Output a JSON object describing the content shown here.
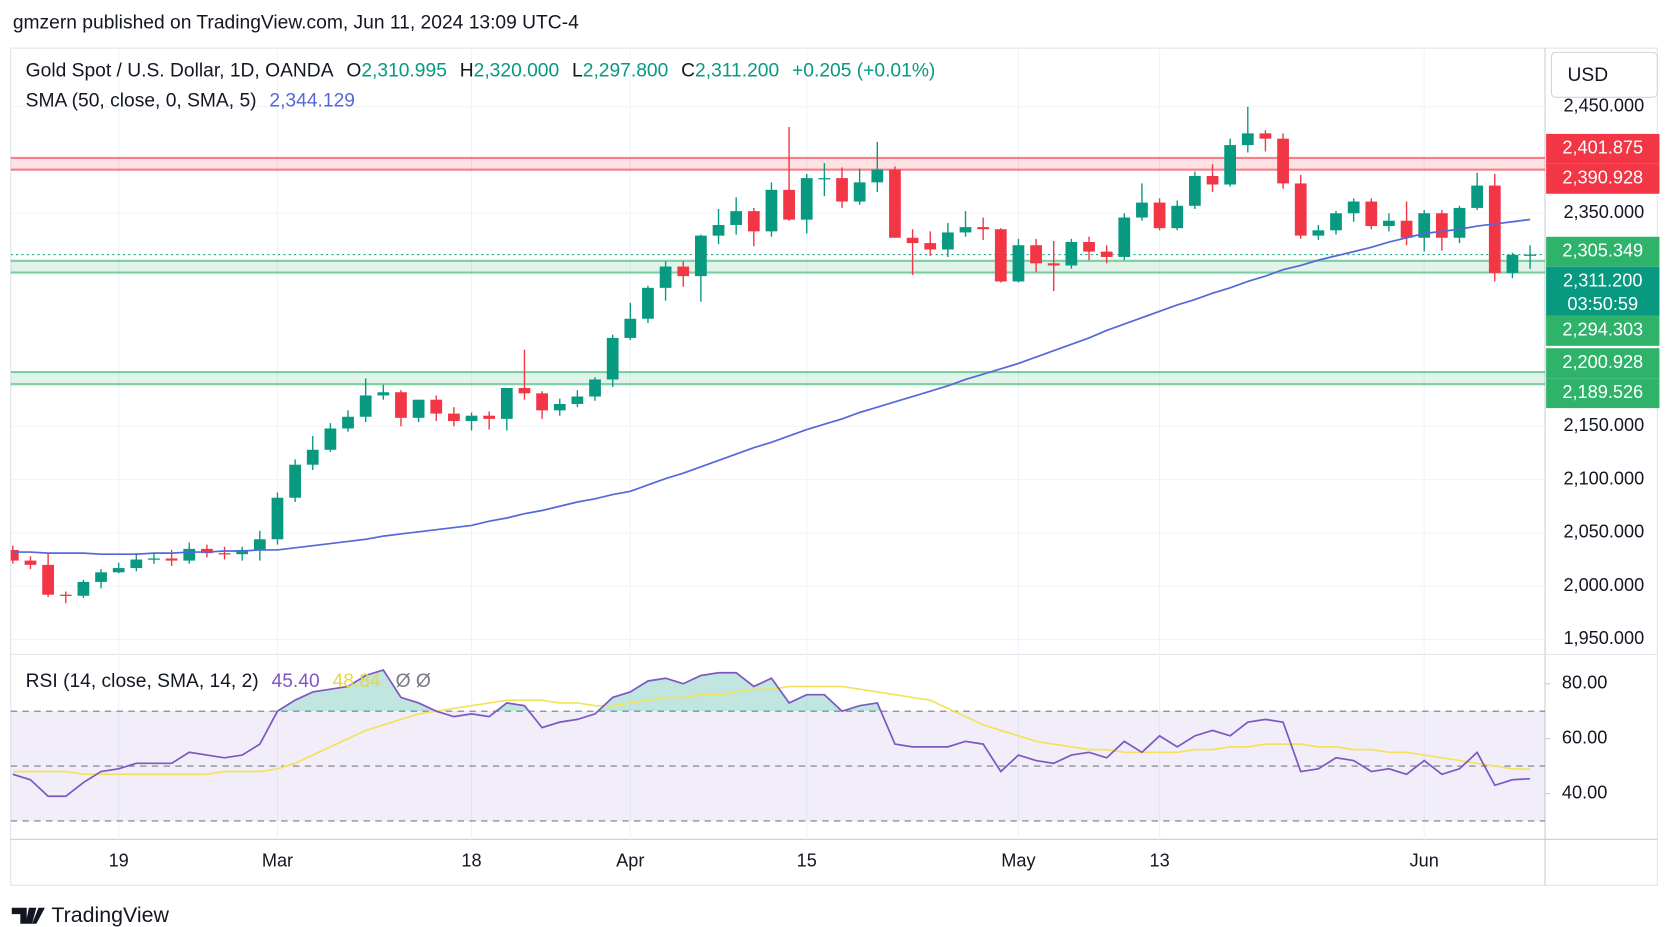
{
  "page": {
    "publisher": "gmzern published on TradingView.com, Jun 11, 2024 13:09 UTC-4",
    "brand": "TradingView",
    "currency": "USD"
  },
  "chart_data": [
    {
      "type": "candlestick",
      "title": "Gold Spot / U.S. Dollar, 1D, OANDA",
      "ohlc_readout": [
        {
          "key": "O",
          "value": "2,310.995"
        },
        {
          "key": "H",
          "value": "2,320.000"
        },
        {
          "key": "L",
          "value": "2,297.800"
        },
        {
          "key": "C",
          "value": "2,311.200"
        }
      ],
      "change": "+0.205 (+0.01%)",
      "legend": "SMA (50, close, 0, SMA, 5)",
      "legend_value": "2,344.129",
      "categories": [
        null,
        null,
        null,
        null,
        null,
        null,
        "19",
        null,
        null,
        null,
        null,
        null,
        null,
        null,
        null,
        "Mar",
        null,
        null,
        null,
        null,
        null,
        null,
        null,
        null,
        null,
        null,
        "18",
        null,
        null,
        null,
        null,
        null,
        null,
        null,
        null,
        "Apr",
        null,
        null,
        null,
        null,
        null,
        null,
        null,
        null,
        null,
        "15",
        null,
        null,
        null,
        null,
        null,
        null,
        null,
        null,
        null,
        null,
        null,
        "May",
        null,
        null,
        null,
        null,
        null,
        null,
        null,
        "13",
        null,
        null,
        null,
        null,
        null,
        null,
        null,
        null,
        null,
        null,
        null,
        null,
        null,
        null,
        "Jun",
        null,
        null,
        null,
        null,
        null,
        null
      ],
      "open": [
        2034,
        2024,
        2020,
        1992,
        1991,
        2004,
        2013,
        2017,
        2025,
        2026,
        2024,
        2035,
        2031,
        2030,
        2034,
        2044,
        2083,
        2114,
        2128,
        2148,
        2159,
        2179,
        2182,
        2158,
        2175,
        2162,
        2155,
        2160,
        2157,
        2186,
        2181,
        2165,
        2171,
        2178,
        2194,
        2233,
        2251,
        2280,
        2300,
        2291,
        2329,
        2339,
        2352,
        2333,
        2372,
        2344,
        2383,
        2383,
        2361,
        2379,
        2391,
        2327,
        2322,
        2316,
        2332,
        2337,
        2335,
        2286,
        2320,
        2303,
        2301,
        2323,
        2314,
        2309,
        2346,
        2360,
        2336,
        2357,
        2385,
        2377,
        2414,
        2425,
        2420,
        2378,
        2329,
        2334,
        2350,
        2361,
        2338,
        2343,
        2327,
        2350,
        2327,
        2355,
        2376,
        2294,
        2310.995
      ],
      "high": [
        2038,
        2028,
        2031,
        1995,
        2006,
        2016,
        2022,
        2031,
        2031,
        2034,
        2041,
        2039,
        2037,
        2037,
        2052,
        2088,
        2119,
        2141,
        2153,
        2165,
        2195,
        2189,
        2184,
        2175,
        2179,
        2168,
        2163,
        2164,
        2186,
        2222,
        2183,
        2176,
        2184,
        2196,
        2236,
        2266,
        2282,
        2305,
        2305,
        2330,
        2354,
        2365,
        2355,
        2379,
        2431,
        2387,
        2397,
        2393,
        2392,
        2417,
        2394,
        2335,
        2333,
        2341,
        2352,
        2346,
        2336,
        2326,
        2326,
        2324,
        2326,
        2328,
        2320,
        2350,
        2378,
        2364,
        2362,
        2389,
        2396,
        2420,
        2450,
        2428,
        2425,
        2386,
        2339,
        2352,
        2364,
        2364,
        2350,
        2361,
        2353,
        2353,
        2357,
        2388,
        2387,
        2313,
        2320
      ],
      "low": [
        2021,
        2016,
        1990,
        1984,
        1989,
        1998,
        2012,
        2014,
        2021,
        2019,
        2021,
        2027,
        2025,
        2024,
        2024,
        2039,
        2079,
        2109,
        2126,
        2145,
        2154,
        2175,
        2150,
        2154,
        2155,
        2150,
        2146,
        2147,
        2146,
        2175,
        2157,
        2160,
        2168,
        2174,
        2187,
        2231,
        2247,
        2268,
        2281,
        2267,
        2321,
        2330,
        2319,
        2328,
        2343,
        2331,
        2366,
        2355,
        2358,
        2370,
        2327,
        2292,
        2310,
        2309,
        2328,
        2325,
        2285,
        2285,
        2295,
        2277,
        2298,
        2306,
        2303,
        2306,
        2343,
        2334,
        2334,
        2354,
        2370,
        2375,
        2407,
        2408,
        2373,
        2326,
        2325,
        2330,
        2342,
        2335,
        2333,
        2320,
        2314,
        2315,
        2322,
        2353,
        2286,
        2289,
        2297.8
      ],
      "close": [
        2024,
        2020,
        1992,
        1991,
        2004,
        2013,
        2017,
        2025,
        2026,
        2024,
        2035,
        2031,
        2030,
        2034,
        2044,
        2083,
        2114,
        2128,
        2148,
        2159,
        2179,
        2182,
        2158,
        2175,
        2162,
        2155,
        2160,
        2157,
        2186,
        2181,
        2165,
        2171,
        2178,
        2194,
        2233,
        2251,
        2280,
        2300,
        2291,
        2329,
        2339,
        2352,
        2333,
        2372,
        2344,
        2383,
        2383,
        2361,
        2379,
        2391,
        2327,
        2322,
        2316,
        2332,
        2337,
        2335,
        2286,
        2320,
        2303,
        2301,
        2323,
        2314,
        2309,
        2346,
        2360,
        2336,
        2357,
        2385,
        2377,
        2414,
        2425,
        2420,
        2378,
        2329,
        2334,
        2350,
        2361,
        2338,
        2343,
        2327,
        2350,
        2327,
        2355,
        2376,
        2294,
        2311,
        2311.2
      ],
      "up_color": "#089981",
      "down_color": "#f23645",
      "series": [
        {
          "color": "#5468d8",
          "values": [
            2032,
            2032,
            2031,
            2031,
            2031,
            2030,
            2030,
            2030,
            2031,
            2031,
            2032,
            2032,
            2033,
            2033,
            2034,
            2034,
            2036,
            2038,
            2040,
            2042,
            2044,
            2047,
            2049,
            2051,
            2053,
            2055,
            2057,
            2061,
            2064,
            2068,
            2071,
            2075,
            2079,
            2082,
            2086,
            2089,
            2095,
            2101,
            2106,
            2112,
            2118,
            2124,
            2130,
            2135,
            2141,
            2147,
            2152,
            2157,
            2163,
            2168,
            2173,
            2178,
            2183,
            2188,
            2194,
            2199,
            2204,
            2209,
            2215,
            2221,
            2227,
            2233,
            2240,
            2246,
            2252,
            2258,
            2264,
            2269,
            2275,
            2280,
            2286,
            2291,
            2297,
            2301,
            2306,
            2310,
            2314,
            2318,
            2323,
            2327,
            2331,
            2333,
            2335,
            2338,
            2340,
            2342,
            2344.129
          ]
        }
      ],
      "zones": [
        {
          "color": "#f23645",
          "top": {
            "value": 2401.875,
            "label": "2,401.875"
          },
          "bottom": {
            "value": 2390.928,
            "label": "2,390.928"
          }
        },
        {
          "color": "#2fb36b",
          "top": {
            "value": 2305.349,
            "label": "2,305.349"
          },
          "bottom": {
            "value": 2294.303,
            "label": "2,294.303"
          }
        },
        {
          "color": "#2fb36b",
          "top": {
            "value": 2200.928,
            "label": "2,200.928"
          },
          "bottom": {
            "value": 2189.526,
            "label": "2,189.526"
          }
        }
      ],
      "last_price": {
        "value": 2311.2,
        "label": "2,311.200"
      },
      "countdown": "03:50:59",
      "ylim": [
        1936,
        2505
      ],
      "yticks": [
        {
          "value": 1950,
          "label": "1,950.000"
        },
        {
          "value": 2000,
          "label": "2,000.000"
        },
        {
          "value": 2050,
          "label": "2,050.000"
        },
        {
          "value": 2100,
          "label": "2,100.000"
        },
        {
          "value": 2150,
          "label": "2,150.000"
        },
        {
          "value": 2350,
          "label": "2,350.000"
        },
        {
          "value": 2450,
          "label": "2,450.000"
        }
      ],
      "grid": true
    },
    {
      "type": "line",
      "title": "RSI (14, close, SMA, 14, 2)",
      "legend_values": [
        "45.40",
        "48.84"
      ],
      "legend_extra": "Ø Ø",
      "series": [
        {
          "color": "#7e57c2",
          "values": [
            47,
            45,
            39,
            39,
            44,
            48,
            49,
            51,
            51,
            51,
            55,
            54,
            53,
            54,
            58,
            70,
            74,
            77,
            78,
            79,
            83,
            85,
            75,
            73,
            70,
            68,
            69,
            68,
            73,
            72,
            64,
            66,
            67,
            69,
            75,
            77,
            81,
            82,
            80,
            83,
            84,
            84,
            79,
            82,
            73,
            76,
            76,
            70,
            72,
            73,
            58,
            57,
            57,
            57,
            59,
            58,
            48,
            54,
            52,
            51,
            54,
            55,
            53,
            59,
            55,
            61,
            57,
            61,
            63,
            61,
            66,
            67,
            66,
            48,
            49,
            53,
            52,
            48,
            49,
            47,
            52,
            47,
            49,
            55,
            43,
            45,
            45.4
          ]
        },
        {
          "color": "#f2e25c",
          "values": [
            48,
            48,
            48,
            48,
            47,
            47,
            47,
            47,
            47,
            47,
            47,
            47,
            48,
            48,
            48,
            49,
            51,
            54,
            57,
            60,
            63,
            65,
            67,
            69,
            70,
            71,
            72,
            73,
            74,
            74,
            74,
            73,
            73,
            72,
            72,
            73,
            74,
            75,
            75,
            76,
            76,
            77,
            78,
            78,
            79,
            79,
            79,
            79,
            78,
            77,
            76,
            75,
            74,
            71,
            68,
            65,
            63,
            61,
            59,
            58,
            57,
            56,
            56,
            55,
            55,
            55,
            55,
            56,
            56,
            57,
            57,
            58,
            58,
            58,
            57,
            57,
            56,
            56,
            55,
            55,
            54,
            53,
            52,
            51,
            50,
            49,
            48.84
          ]
        }
      ],
      "hlines": [
        30,
        50,
        70
      ],
      "band_color": "#7e57c2",
      "overbought_color": "#089981",
      "ylim": [
        23.3,
        90.7
      ],
      "yticks": [
        {
          "value": 40,
          "label": "40.00"
        },
        {
          "value": 60,
          "label": "60.00"
        },
        {
          "value": 80,
          "label": "80.00"
        }
      ]
    }
  ]
}
